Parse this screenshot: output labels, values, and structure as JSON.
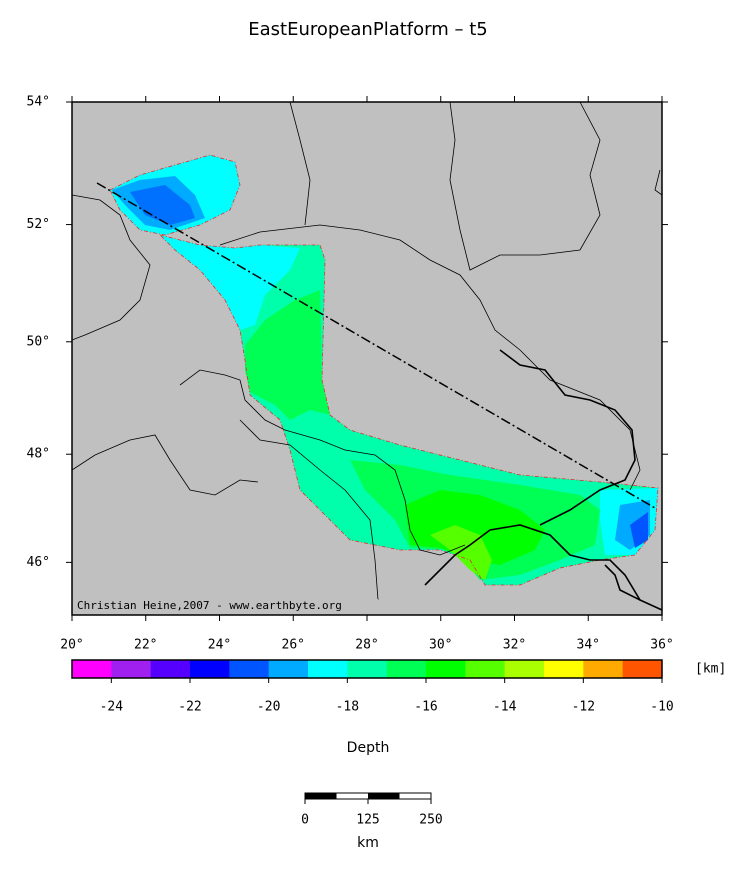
{
  "title": "EastEuropeanPlatform – t5",
  "map": {
    "lon_range": [
      20,
      36
    ],
    "lat_range": [
      45,
      54
    ],
    "lon_ticks": [
      {
        "value": 20,
        "label": "20°"
      },
      {
        "value": 22,
        "label": "22°"
      },
      {
        "value": 24,
        "label": "24°"
      },
      {
        "value": 26,
        "label": "26°"
      },
      {
        "value": 28,
        "label": "28°"
      },
      {
        "value": 30,
        "label": "30°"
      },
      {
        "value": 32,
        "label": "32°"
      },
      {
        "value": 34,
        "label": "34°"
      },
      {
        "value": 36,
        "label": "36°"
      }
    ],
    "lat_ticks": [
      {
        "value": 46,
        "label": "46°"
      },
      {
        "value": 48,
        "label": "48°"
      },
      {
        "value": 50,
        "label": "50°"
      },
      {
        "value": 52,
        "label": "52°"
      },
      {
        "value": 54,
        "label": "54°"
      }
    ],
    "credit": "Christian Heine,2007 - www.earthbyte.org"
  },
  "colorbar": {
    "range": [
      -25,
      -10
    ],
    "colors": [
      "#ff00ff",
      "#a020f0",
      "#5500ff",
      "#0000ff",
      "#0055ff",
      "#00aaff",
      "#00ffff",
      "#00ffaa",
      "#00ff55",
      "#00ff00",
      "#55ff00",
      "#aaff00",
      "#ffff00",
      "#ffaa00",
      "#ff5500"
    ],
    "ticks": [
      -24,
      -22,
      -20,
      -18,
      -16,
      -14,
      -12,
      -10
    ],
    "unit": "[km]",
    "label": "Depth"
  },
  "scalebar": {
    "ticks": [
      0,
      125,
      250
    ],
    "unit": "km"
  }
}
